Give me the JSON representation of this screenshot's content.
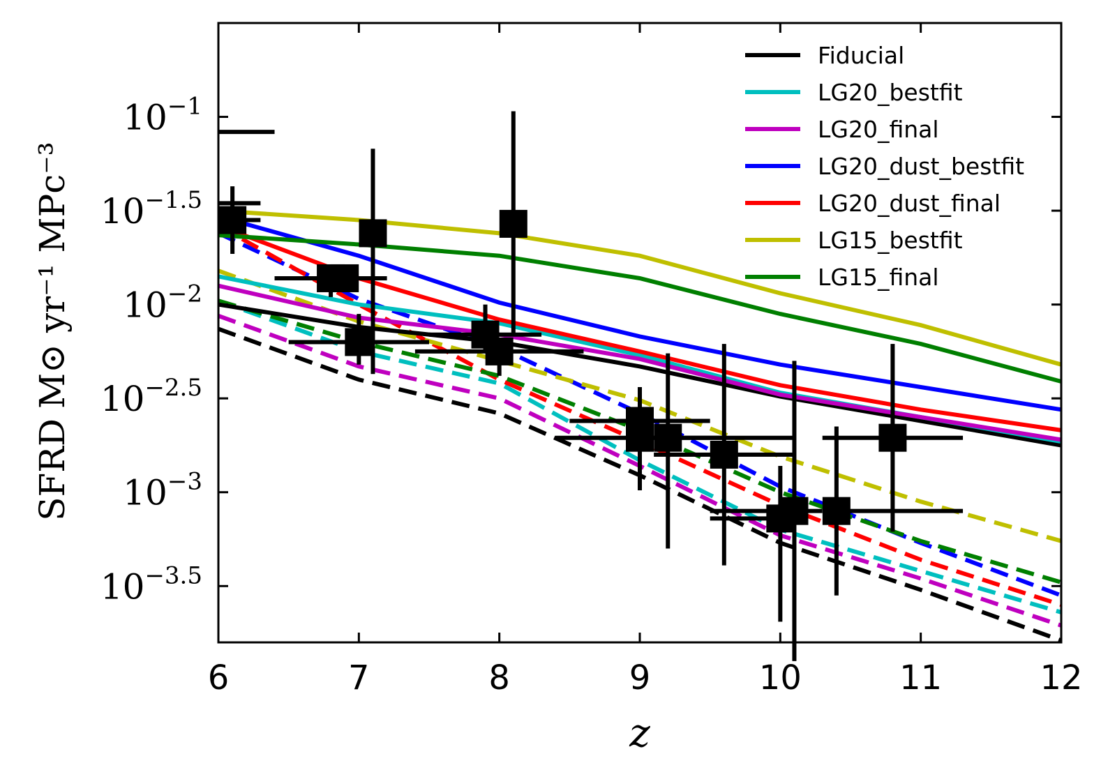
{
  "chart_data": {
    "type": "line",
    "xlabel": "z",
    "ylabel": "SFRD [M⊙ yr⁻¹ MPc⁻³]",
    "ylabel_parts": {
      "name": "SFRD",
      "unit": "M⊙ yr⁻¹ MPc⁻³"
    },
    "scale_y": "log10",
    "xlim": [
      6,
      12
    ],
    "ylim": [
      -3.8,
      -0.5
    ],
    "x_ticks": [
      "6",
      "7",
      "8",
      "9",
      "10",
      "11",
      "12"
    ],
    "y_ticks": [
      {
        "base": "10",
        "exp": "−1",
        "value": -1.0
      },
      {
        "base": "10",
        "exp": "−1.5",
        "value": -1.5
      },
      {
        "base": "10",
        "exp": "−2",
        "value": -2.0
      },
      {
        "base": "10",
        "exp": "−2.5",
        "value": -2.5
      },
      {
        "base": "10",
        "exp": "−3",
        "value": -3.0
      },
      {
        "base": "10",
        "exp": "−3.5",
        "value": -3.5
      }
    ],
    "legend_position": "top-right",
    "series": [
      {
        "name": "Fiducial",
        "color": "#000000",
        "x": [
          6,
          7,
          8,
          9,
          10,
          11,
          12
        ],
        "solid": [
          -2.0,
          -2.12,
          -2.2,
          -2.33,
          -2.49,
          -2.62,
          -2.75
        ],
        "dashed": [
          -2.13,
          -2.4,
          -2.58,
          -2.91,
          -3.27,
          -3.52,
          -3.79
        ]
      },
      {
        "name": "LG20_bestfit",
        "color": "#00bfbf",
        "x": [
          6,
          7,
          8,
          9,
          10,
          11,
          12
        ],
        "solid": [
          -1.85,
          -2.0,
          -2.1,
          -2.27,
          -2.47,
          -2.6,
          -2.73
        ],
        "dashed": [
          -1.98,
          -2.25,
          -2.42,
          -2.83,
          -3.2,
          -3.42,
          -3.64
        ]
      },
      {
        "name": "LG20_final",
        "color": "#bf00bf",
        "x": [
          6,
          7,
          8,
          9,
          10,
          11,
          12
        ],
        "solid": [
          -1.9,
          -2.07,
          -2.16,
          -2.29,
          -2.48,
          -2.6,
          -2.72
        ],
        "dashed": [
          -2.06,
          -2.33,
          -2.5,
          -2.86,
          -3.23,
          -3.46,
          -3.71
        ]
      },
      {
        "name": "LG20_dust_bestfit",
        "color": "#0000ff",
        "x": [
          6,
          7,
          8,
          9,
          10,
          11,
          12
        ],
        "solid": [
          -1.53,
          -1.74,
          -1.99,
          -2.17,
          -2.32,
          -2.44,
          -2.56
        ],
        "dashed": [
          -1.62,
          -1.97,
          -2.23,
          -2.58,
          -2.97,
          -3.27,
          -3.55
        ]
      },
      {
        "name": "LG20_dust_final",
        "color": "#ff0000",
        "x": [
          6,
          7,
          8,
          9,
          10,
          11,
          12
        ],
        "solid": [
          -1.58,
          -1.86,
          -2.08,
          -2.25,
          -2.43,
          -2.56,
          -2.67
        ],
        "dashed": [
          -1.58,
          -2.0,
          -2.4,
          -2.73,
          -3.07,
          -3.36,
          -3.6
        ]
      },
      {
        "name": "LG15_bestfit",
        "color": "#bfbf00",
        "x": [
          6,
          7,
          8,
          9,
          10,
          11,
          12
        ],
        "solid": [
          -1.5,
          -1.55,
          -1.62,
          -1.74,
          -1.94,
          -2.11,
          -2.32
        ],
        "dashed": [
          -1.82,
          -2.09,
          -2.3,
          -2.51,
          -2.81,
          -3.05,
          -3.26
        ]
      },
      {
        "name": "LG15_final",
        "color": "#007f00",
        "x": [
          6,
          7,
          8,
          9,
          10,
          11,
          12
        ],
        "solid": [
          -1.63,
          -1.68,
          -1.74,
          -1.86,
          -2.05,
          -2.21,
          -2.41
        ],
        "dashed": [
          -1.98,
          -2.2,
          -2.38,
          -2.67,
          -3.0,
          -3.26,
          -3.48
        ]
      }
    ],
    "observations": [
      {
        "x": 6.1,
        "y": -1.55,
        "xerr_lo": 0.1,
        "xerr_hi": 0.2,
        "yerr_lo": 0.18,
        "yerr_hi": 0.18
      },
      {
        "x": 6.8,
        "y": -1.86,
        "xerr_lo": 0.4,
        "xerr_hi": 0.4,
        "yerr_lo": 0.1,
        "yerr_hi": 0.05
      },
      {
        "x": 6.9,
        "y": -1.86,
        "xerr_lo": 0.0,
        "xerr_hi": 0.0,
        "yerr_lo": 0.0,
        "yerr_hi": 0.0
      },
      {
        "x": 7.0,
        "y": -2.2,
        "xerr_lo": 0.5,
        "xerr_hi": 0.5,
        "yerr_lo": 0.12,
        "yerr_hi": 0.15
      },
      {
        "x": 7.1,
        "y": -1.62,
        "xerr_lo": 0.0,
        "xerr_hi": 0.0,
        "yerr_lo": 0.75,
        "yerr_hi": 0.45
      },
      {
        "x": 7.9,
        "y": -2.16,
        "xerr_lo": 0.4,
        "xerr_hi": 0.4,
        "yerr_lo": 0.08,
        "yerr_hi": 0.16
      },
      {
        "x": 8.0,
        "y": -2.25,
        "xerr_lo": 0.6,
        "xerr_hi": 0.6,
        "yerr_lo": 0.13,
        "yerr_hi": 0.0
      },
      {
        "x": 8.1,
        "y": -1.57,
        "xerr_lo": 0.0,
        "xerr_hi": 0.0,
        "yerr_lo": 0.6,
        "yerr_hi": 0.6
      },
      {
        "x": 9.0,
        "y": -2.62,
        "xerr_lo": 0.5,
        "xerr_hi": 0.5,
        "yerr_lo": 0.3,
        "yerr_hi": 0.18
      },
      {
        "x": 9.0,
        "y": -2.71,
        "xerr_lo": 0.6,
        "xerr_hi": 0.6,
        "yerr_lo": 0.28,
        "yerr_hi": 0.05
      },
      {
        "x": 9.2,
        "y": -2.71,
        "xerr_lo": 0.1,
        "xerr_hi": 0.9,
        "yerr_lo": 0.59,
        "yerr_hi": 0.45
      },
      {
        "x": 9.6,
        "y": -2.8,
        "xerr_lo": 0.5,
        "xerr_hi": 0.5,
        "yerr_lo": 0.59,
        "yerr_hi": 0.59
      },
      {
        "x": 10.0,
        "y": -3.14,
        "xerr_lo": 0.5,
        "xerr_hi": 0.0,
        "yerr_lo": 0.55,
        "yerr_hi": 0.28
      },
      {
        "x": 10.1,
        "y": -3.1,
        "xerr_lo": 0.6,
        "xerr_hi": 0.2,
        "yerr_lo": 0.8,
        "yerr_hi": 0.8
      },
      {
        "x": 10.4,
        "y": -3.1,
        "xerr_lo": 0.0,
        "xerr_hi": 0.9,
        "yerr_lo": 0.45,
        "yerr_hi": 0.45
      },
      {
        "x": 10.8,
        "y": -2.71,
        "xerr_lo": 0.5,
        "xerr_hi": 0.5,
        "yerr_lo": 0.5,
        "yerr_hi": 0.5
      }
    ],
    "reference_marks": [
      {
        "x_from": 6.0,
        "x_to": 6.4,
        "y": -1.08
      },
      {
        "x_from": 6.0,
        "x_to": 6.3,
        "y": -1.46
      }
    ]
  }
}
